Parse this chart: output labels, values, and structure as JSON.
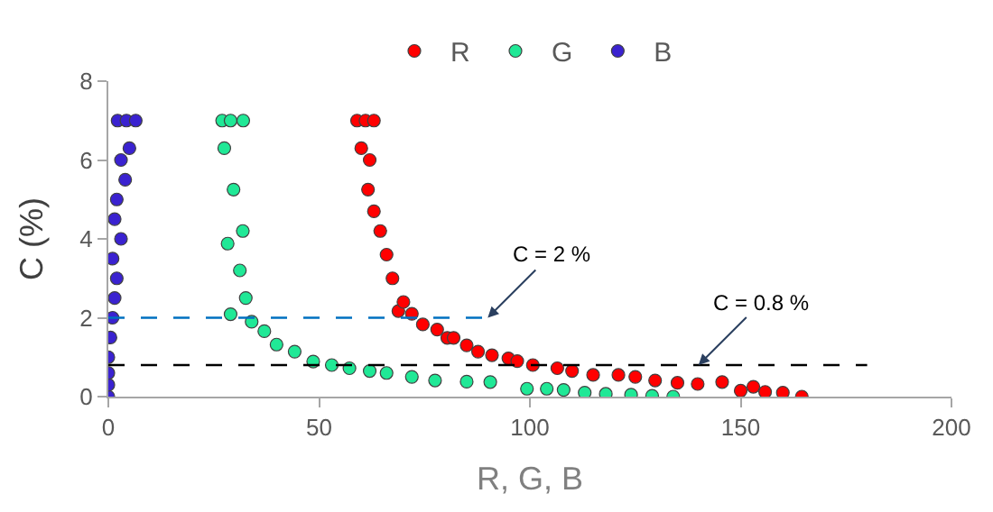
{
  "chart_data": {
    "type": "scatter",
    "xlabel": "R, G, B",
    "ylabel": "C (%)",
    "xlim": [
      0,
      200
    ],
    "xticks": [
      0,
      50,
      100,
      150,
      200
    ],
    "ylim": [
      0,
      8
    ],
    "yticks": [
      0,
      2,
      4,
      6,
      8
    ],
    "legend": "top",
    "marker": "circle",
    "series": [
      {
        "name": "R",
        "color": "#ff0000",
        "x": [
          59,
          61,
          63,
          60,
          62,
          61.6,
          63,
          64.5,
          66,
          67.4,
          68.8,
          70,
          72,
          74.6,
          78,
          80.4,
          81.9,
          85,
          87.7,
          91,
          94.9,
          97,
          100.7,
          106.5,
          110,
          115,
          121,
          125,
          129.7,
          135,
          139.8,
          145.6,
          150,
          153,
          155.8,
          160,
          164.5
        ],
        "values": [
          7,
          7,
          7,
          6.3,
          6,
          5.25,
          4.7,
          4.2,
          3.6,
          3,
          2.17,
          2.4,
          2.1,
          1.83,
          1.7,
          1.49,
          1.49,
          1.3,
          1.14,
          1.05,
          0.97,
          0.9,
          0.8,
          0.72,
          0.65,
          0.55,
          0.55,
          0.5,
          0.41,
          0.35,
          0.32,
          0.37,
          0.15,
          0.25,
          0.12,
          0.1,
          0
        ]
      },
      {
        "name": "G",
        "color": "#20e896",
        "x": [
          27,
          29,
          32,
          27.5,
          29.7,
          31.9,
          28.3,
          31.2,
          32.6,
          29,
          34,
          37,
          39.9,
          44.2,
          48.6,
          53,
          57.2,
          62,
          66,
          72,
          77.5,
          85,
          90.6,
          99.3,
          104,
          108,
          113,
          118,
          124,
          129,
          134
        ],
        "values": [
          7,
          7,
          7,
          6.3,
          5.25,
          4.2,
          3.88,
          3.2,
          2.5,
          2.09,
          1.9,
          1.66,
          1.32,
          1.14,
          0.89,
          0.8,
          0.72,
          0.65,
          0.6,
          0.5,
          0.41,
          0.38,
          0.37,
          0.2,
          0.2,
          0.17,
          0.1,
          0.07,
          0.05,
          0.02,
          0
        ]
      },
      {
        "name": "B",
        "color": "#3a22d0",
        "x": [
          0,
          0,
          0,
          0,
          0.5,
          1,
          1.5,
          2,
          1,
          3,
          1.5,
          2,
          4,
          3,
          5,
          2.2,
          4.3,
          6.5
        ],
        "values": [
          0,
          0.3,
          0.6,
          1,
          1.5,
          2,
          2.5,
          3,
          3.5,
          4,
          4.5,
          5,
          5.5,
          6,
          6.3,
          7,
          7,
          7
        ]
      },
      {
        "type": "line",
        "marker": "none",
        "line_style": "dashed",
        "color": "#0070c0",
        "x": [
          0,
          90
        ],
        "values": [
          2,
          2
        ]
      },
      {
        "type": "line",
        "marker": "none",
        "line_style": "dashed",
        "color": "#000000",
        "x": [
          0,
          180
        ],
        "values": [
          0.8,
          0.8
        ]
      }
    ],
    "annotations": [
      {
        "text": "C = 2 %",
        "x": 90,
        "y": 2
      },
      {
        "text": "C = 0.8 %",
        "x": 140,
        "y": 0.8
      }
    ]
  }
}
